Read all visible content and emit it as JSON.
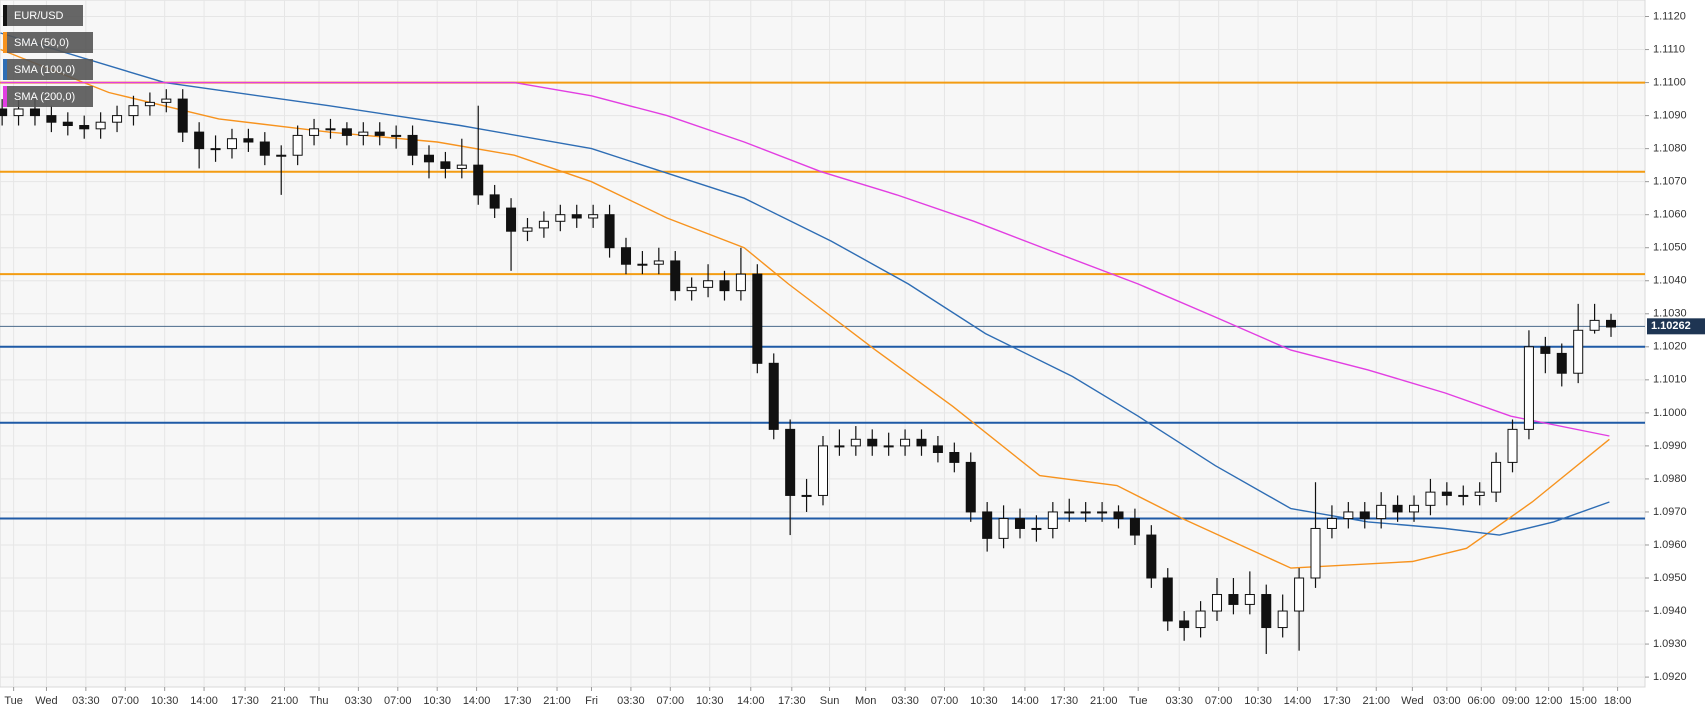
{
  "chart_data": {
    "type": "candlestick",
    "title": "EUR/USD",
    "candles": {
      "open": [
        1.1092,
        1.109,
        1.1092,
        1.109,
        1.1088,
        1.1087,
        1.1086,
        1.1088,
        1.109,
        1.1093,
        1.1094,
        1.1095,
        1.1085,
        1.108,
        1.108,
        1.1083,
        1.1082,
        1.1078,
        1.1078,
        1.1084,
        1.1086,
        1.1086,
        1.1084,
        1.1085,
        1.1084,
        1.1084,
        1.1078,
        1.1076,
        1.1074,
        1.1075,
        1.1066,
        1.1062,
        1.1055,
        1.1056,
        1.1058,
        1.106,
        1.1059,
        1.106,
        1.105,
        1.1045,
        1.1045,
        1.1046,
        1.1037,
        1.1038,
        1.104,
        1.1037,
        1.1042,
        1.1015,
        1.0995,
        1.0975,
        1.0975,
        1.099,
        1.099,
        1.0992,
        1.099,
        1.099,
        1.0992,
        1.099,
        1.0988,
        1.0985,
        1.097,
        1.0962,
        1.0968,
        1.0965,
        1.0965,
        1.097,
        1.097,
        1.097,
        1.097,
        1.0968,
        1.0963,
        1.095,
        1.0937,
        1.0935,
        1.094,
        1.0945,
        1.0942,
        1.0945,
        1.0935,
        1.094,
        1.095,
        1.0965,
        1.0968,
        1.097,
        1.0968,
        1.0972,
        1.097,
        1.0972,
        1.0976,
        1.0975,
        1.0975,
        1.0976,
        1.0985,
        1.0995,
        1.102,
        1.1018,
        1.1012,
        1.1025,
        1.1028
      ],
      "high": [
        1.1095,
        1.1095,
        1.1095,
        1.1093,
        1.1091,
        1.109,
        1.1091,
        1.1093,
        1.1096,
        1.1097,
        1.1098,
        1.1098,
        1.1088,
        1.1084,
        1.1086,
        1.1086,
        1.1085,
        1.1081,
        1.1087,
        1.1089,
        1.1089,
        1.1088,
        1.1088,
        1.1088,
        1.1087,
        1.1087,
        1.1081,
        1.1079,
        1.1083,
        1.1093,
        1.1069,
        1.1065,
        1.1059,
        1.1061,
        1.1063,
        1.1063,
        1.1063,
        1.1063,
        1.1053,
        1.1049,
        1.105,
        1.1049,
        1.1041,
        1.1045,
        1.1043,
        1.105,
        1.1045,
        1.1018,
        1.0998,
        1.098,
        1.0993,
        1.0995,
        1.0996,
        1.0995,
        1.0994,
        1.0995,
        1.0995,
        1.0993,
        1.0991,
        1.0988,
        1.0973,
        1.0972,
        1.0971,
        1.0969,
        1.0973,
        1.0974,
        1.0973,
        1.0973,
        1.0972,
        1.0971,
        1.0966,
        1.0953,
        1.094,
        1.0943,
        1.095,
        1.095,
        1.0952,
        1.0948,
        1.0945,
        1.0953,
        1.0979,
        1.0972,
        1.0973,
        1.0973,
        1.0976,
        1.0975,
        1.0975,
        1.098,
        1.0979,
        1.0978,
        1.0979,
        1.0988,
        1.0998,
        1.1025,
        1.1023,
        1.1021,
        1.1033,
        1.1033,
        1.103
      ],
      "low": [
        1.1087,
        1.1087,
        1.1087,
        1.1085,
        1.1084,
        1.1083,
        1.1083,
        1.1085,
        1.1087,
        1.109,
        1.1091,
        1.1082,
        1.1074,
        1.1076,
        1.1077,
        1.1079,
        1.1075,
        1.1066,
        1.1075,
        1.1081,
        1.1083,
        1.1081,
        1.1081,
        1.1081,
        1.108,
        1.1075,
        1.1071,
        1.1071,
        1.1071,
        1.1063,
        1.1059,
        1.1043,
        1.1052,
        1.1053,
        1.1055,
        1.1056,
        1.1056,
        1.1047,
        1.1042,
        1.1042,
        1.1042,
        1.1034,
        1.1034,
        1.1035,
        1.1034,
        1.1034,
        1.1012,
        1.0992,
        1.0963,
        1.097,
        1.0972,
        1.0987,
        1.0987,
        1.0987,
        1.0987,
        1.0987,
        1.0987,
        1.0985,
        1.0982,
        1.0967,
        1.0958,
        1.0959,
        1.0962,
        1.0961,
        1.0962,
        1.0967,
        1.0967,
        1.0967,
        1.0965,
        1.096,
        1.0947,
        1.0934,
        1.0931,
        1.0932,
        1.0937,
        1.0939,
        1.0939,
        1.0927,
        1.0932,
        1.0928,
        1.0947,
        1.0962,
        1.0965,
        1.0965,
        1.0965,
        1.0967,
        1.0967,
        1.0969,
        1.0972,
        1.0972,
        1.0972,
        1.0973,
        1.0982,
        1.0992,
        1.1012,
        1.1008,
        1.1009,
        1.1024,
        1.1023
      ],
      "close": [
        1.109,
        1.1092,
        1.109,
        1.1088,
        1.1087,
        1.1086,
        1.1088,
        1.109,
        1.1093,
        1.1094,
        1.1095,
        1.1085,
        1.108,
        1.108,
        1.1083,
        1.1082,
        1.1078,
        1.1078,
        1.1084,
        1.1086,
        1.1086,
        1.1084,
        1.1085,
        1.1084,
        1.1084,
        1.1078,
        1.1076,
        1.1074,
        1.1075,
        1.1066,
        1.1062,
        1.1055,
        1.1056,
        1.1058,
        1.106,
        1.1059,
        1.106,
        1.105,
        1.1045,
        1.1045,
        1.1046,
        1.1037,
        1.1038,
        1.104,
        1.1037,
        1.1042,
        1.1015,
        1.0995,
        1.0975,
        1.0975,
        1.099,
        1.099,
        1.0992,
        1.099,
        1.099,
        1.0992,
        1.099,
        1.0988,
        1.0985,
        1.097,
        1.0962,
        1.0968,
        1.0965,
        1.0965,
        1.097,
        1.097,
        1.097,
        1.097,
        1.0968,
        1.0963,
        1.095,
        1.0937,
        1.0935,
        1.094,
        1.0945,
        1.0942,
        1.0945,
        1.0935,
        1.094,
        1.095,
        1.0965,
        1.0968,
        1.097,
        1.0968,
        1.0972,
        1.097,
        1.0972,
        1.0976,
        1.0975,
        1.0975,
        1.0976,
        1.0985,
        1.0995,
        1.102,
        1.1018,
        1.1012,
        1.1025,
        1.1028,
        1.1026
      ]
    },
    "series": [
      {
        "name": "SMA (50,0)",
        "color": "#f7931e",
        "x": [
          -0.1,
          6.5,
          13.2,
          19.9,
          26.5,
          31.2,
          35.9,
          40.5,
          45.2,
          47.9,
          53.2,
          57.9,
          63.2,
          67.9,
          71.9,
          78.5,
          85.9,
          89.2,
          93.2,
          97.9
        ],
        "values": [
          1.111,
          1.1097,
          1.1089,
          1.1085,
          1.1082,
          1.1078,
          1.107,
          1.1059,
          1.105,
          1.1039,
          1.1019,
          1.1002,
          1.0981,
          1.0978,
          1.0968,
          1.0953,
          1.0955,
          1.0959,
          1.0973,
          1.0992
        ]
      },
      {
        "name": "SMA (100,0)",
        "color": "#2e6db4",
        "x": [
          -0.1,
          9.9,
          19.9,
          27.9,
          35.9,
          45.2,
          50.5,
          55.2,
          59.9,
          65.2,
          69.2,
          73.9,
          78.5,
          83.2,
          87.9,
          91.2,
          94.5,
          97.9
        ],
        "values": [
          1.1115,
          1.11,
          1.1093,
          1.1087,
          1.108,
          1.1065,
          1.1052,
          1.1039,
          1.1024,
          1.1011,
          1.0999,
          1.0984,
          1.0971,
          1.0967,
          1.0965,
          1.0963,
          1.0967,
          1.0973
        ]
      },
      {
        "name": "SMA (200,0)",
        "color": "#e23ee2",
        "x": [
          -0.1,
          31.2,
          35.9,
          40.5,
          45.2,
          49.9,
          54.5,
          59.2,
          63.9,
          69.2,
          73.9,
          78.5,
          83.2,
          87.9,
          91.9,
          97.9
        ],
        "values": [
          1.11,
          1.11,
          1.1096,
          1.109,
          1.1082,
          1.1073,
          1.1066,
          1.1058,
          1.1049,
          1.1039,
          1.1029,
          1.1019,
          1.1013,
          1.1006,
          1.0999,
          1.0993
        ]
      }
    ],
    "levels": [
      {
        "value": 1.11,
        "color": "#f39c12"
      },
      {
        "value": 1.1073,
        "color": "#f39c12"
      },
      {
        "value": 1.1042,
        "color": "#f39c12"
      },
      {
        "value": 1.102,
        "color": "#1f5aa6"
      },
      {
        "value": 1.0997,
        "color": "#1f5aa6"
      },
      {
        "value": 1.0968,
        "color": "#1f5aa6"
      }
    ],
    "last_price": 1.10262,
    "xlim": [
      -0.13,
      100.07
    ],
    "ylim": [
      1.0917,
      1.1125
    ],
    "xticks": [
      {
        "value": 0.7,
        "label": "Tue"
      },
      {
        "value": 2.7,
        "label": "Wed"
      },
      {
        "value": 5.1,
        "label": "03:30"
      },
      {
        "value": 7.5,
        "label": "07:00"
      },
      {
        "value": 9.9,
        "label": "10:30"
      },
      {
        "value": 12.3,
        "label": "14:00"
      },
      {
        "value": 14.8,
        "label": "17:30"
      },
      {
        "value": 17.2,
        "label": "21:00"
      },
      {
        "value": 19.3,
        "label": "Thu"
      },
      {
        "value": 21.7,
        "label": "03:30"
      },
      {
        "value": 24.1,
        "label": "07:00"
      },
      {
        "value": 26.5,
        "label": "10:30"
      },
      {
        "value": 28.9,
        "label": "14:00"
      },
      {
        "value": 31.4,
        "label": "17:30"
      },
      {
        "value": 33.8,
        "label": "21:00"
      },
      {
        "value": 35.9,
        "label": "Fri"
      },
      {
        "value": 38.3,
        "label": "03:30"
      },
      {
        "value": 40.7,
        "label": "07:00"
      },
      {
        "value": 43.1,
        "label": "10:30"
      },
      {
        "value": 45.6,
        "label": "14:00"
      },
      {
        "value": 48.1,
        "label": "17:30"
      },
      {
        "value": 50.4,
        "label": "Sun"
      },
      {
        "value": 52.6,
        "label": "Mon"
      },
      {
        "value": 55.0,
        "label": "03:30"
      },
      {
        "value": 57.4,
        "label": "07:00"
      },
      {
        "value": 59.8,
        "label": "10:30"
      },
      {
        "value": 62.3,
        "label": "14:00"
      },
      {
        "value": 64.7,
        "label": "17:30"
      },
      {
        "value": 67.1,
        "label": "21:00"
      },
      {
        "value": 69.2,
        "label": "Tue"
      },
      {
        "value": 71.7,
        "label": "03:30"
      },
      {
        "value": 74.1,
        "label": "07:00"
      },
      {
        "value": 76.5,
        "label": "10:30"
      },
      {
        "value": 78.9,
        "label": "14:00"
      },
      {
        "value": 81.3,
        "label": "17:30"
      },
      {
        "value": 83.7,
        "label": "21:00"
      },
      {
        "value": 85.9,
        "label": "Wed"
      },
      {
        "value": 88.0,
        "label": "03:00"
      },
      {
        "value": 90.1,
        "label": "06:00"
      },
      {
        "value": 92.2,
        "label": "09:00"
      },
      {
        "value": 94.2,
        "label": "12:00"
      },
      {
        "value": 96.3,
        "label": "15:00"
      },
      {
        "value": 98.4,
        "label": "18:00"
      }
    ],
    "yticks": [
      {
        "value": 1.092,
        "label": "1.0920"
      },
      {
        "value": 1.093,
        "label": "1.0930"
      },
      {
        "value": 1.094,
        "label": "1.0940"
      },
      {
        "value": 1.095,
        "label": "1.0950"
      },
      {
        "value": 1.096,
        "label": "1.0960"
      },
      {
        "value": 1.097,
        "label": "1.0970"
      },
      {
        "value": 1.098,
        "label": "1.0980"
      },
      {
        "value": 1.099,
        "label": "1.0990"
      },
      {
        "value": 1.1,
        "label": "1.1000"
      },
      {
        "value": 1.101,
        "label": "1.1010"
      },
      {
        "value": 1.102,
        "label": "1.1020"
      },
      {
        "value": 1.103,
        "label": "1.1030"
      },
      {
        "value": 1.104,
        "label": "1.1040"
      },
      {
        "value": 1.105,
        "label": "1.1050"
      },
      {
        "value": 1.106,
        "label": "1.1060"
      },
      {
        "value": 1.107,
        "label": "1.1070"
      },
      {
        "value": 1.108,
        "label": "1.1080"
      },
      {
        "value": 1.109,
        "label": "1.1090"
      },
      {
        "value": 1.11,
        "label": "1.1100"
      },
      {
        "value": 1.111,
        "label": "1.1110"
      },
      {
        "value": 1.112,
        "label": "1.1120"
      }
    ],
    "grid": true
  }
}
